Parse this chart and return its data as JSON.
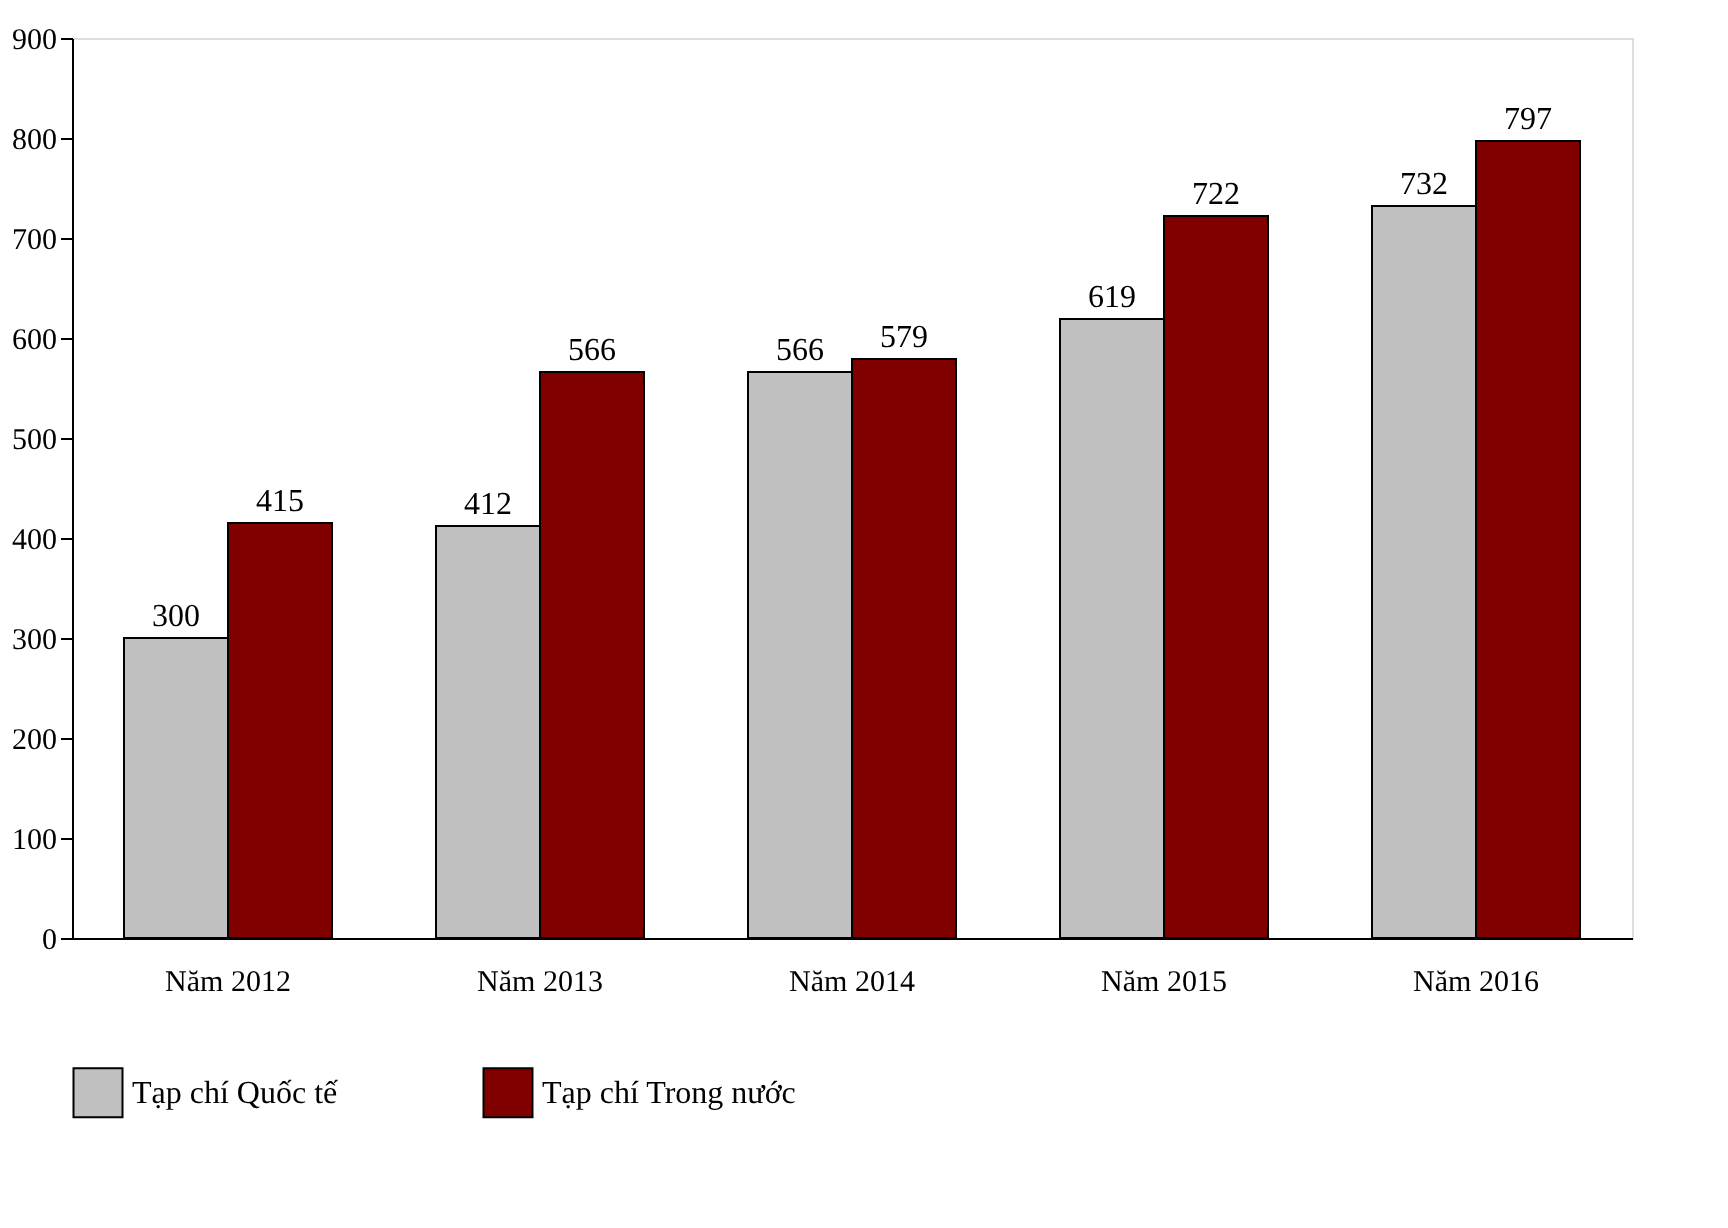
{
  "chart_data": {
    "type": "bar",
    "categories": [
      "Năm 2012",
      "Năm 2013",
      "Năm 2014",
      "Năm 2015",
      "Năm 2016"
    ],
    "series": [
      {
        "name": "Tạp chí Quốc tế",
        "color": "#c0c0c0",
        "values": [
          300,
          412,
          566,
          619,
          732
        ]
      },
      {
        "name": "Tạp chí Trong nước",
        "color": "#800000",
        "values": [
          415,
          566,
          579,
          722,
          797
        ]
      }
    ],
    "ylim": [
      0,
      900
    ],
    "yticks": [
      0,
      100,
      200,
      300,
      400,
      500,
      600,
      700,
      800,
      900
    ],
    "data_labels": true,
    "grid": false,
    "legend": "bottom"
  }
}
